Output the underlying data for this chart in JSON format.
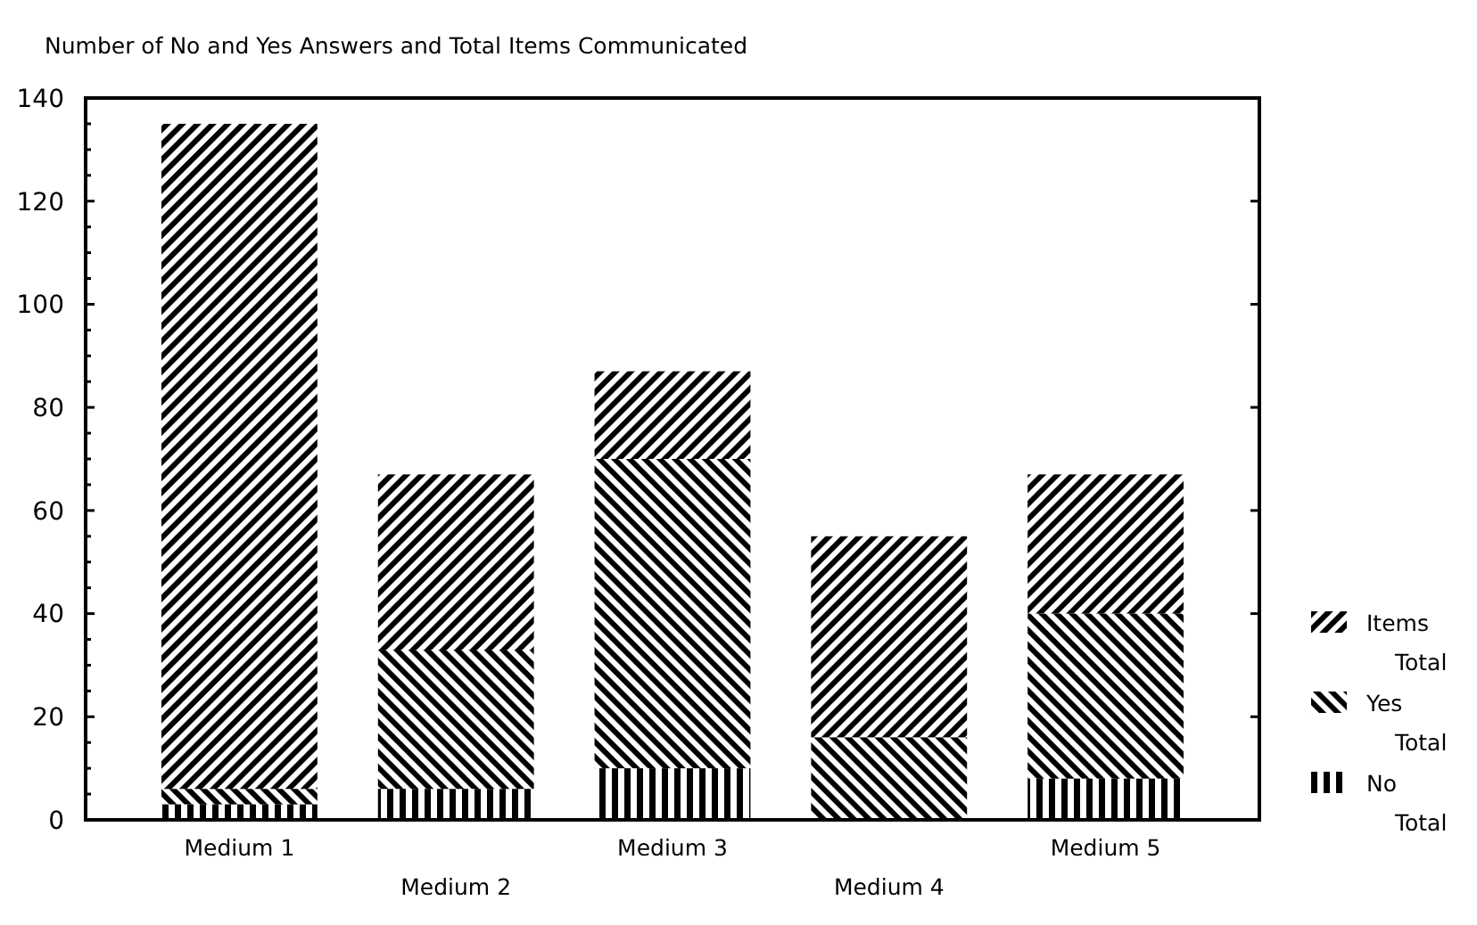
{
  "chart_data": {
    "type": "bar",
    "title": "Number of No and Yes Answers and Total Items Communicated",
    "categories": [
      "Medium 1",
      "Medium 2",
      "Medium 3",
      "Medium 4",
      "Medium 5"
    ],
    "stacked": true,
    "series": [
      {
        "name": "No Total",
        "color": "#000000",
        "values": [
          3,
          6,
          10,
          0,
          8
        ]
      },
      {
        "name": "Yes Total",
        "color": "#000000",
        "values": [
          3,
          27,
          60,
          16,
          32
        ]
      },
      {
        "name": "Items Total",
        "color": "#000000",
        "values": [
          129,
          34,
          17,
          39,
          27
        ]
      }
    ],
    "ylim": [
      0,
      140
    ],
    "yticks": [
      0,
      {
        "value": 5,
        "label": null
      },
      {
        "value": 10,
        "label": null
      },
      {
        "value": 15,
        "label": null
      },
      20,
      {
        "value": 25,
        "label": null
      },
      {
        "value": 30,
        "label": null
      },
      {
        "value": 35,
        "label": null
      },
      40,
      {
        "value": 45,
        "label": null
      },
      {
        "value": 50,
        "label": null
      },
      {
        "value": 55,
        "label": null
      },
      60,
      {
        "value": 65,
        "label": null
      },
      {
        "value": 70,
        "label": null
      },
      {
        "value": 75,
        "label": null
      },
      80,
      {
        "value": 85,
        "label": null
      },
      {
        "value": 90,
        "label": null
      },
      {
        "value": 95,
        "label": null
      },
      100,
      {
        "value": 105,
        "label": null
      },
      {
        "value": 110,
        "label": null
      },
      {
        "value": 115,
        "label": null
      },
      120,
      {
        "value": 125,
        "label": null
      },
      {
        "value": 130,
        "label": null
      },
      {
        "value": 135,
        "label": null
      },
      140
    ],
    "legend": "right",
    "grid": false
  }
}
